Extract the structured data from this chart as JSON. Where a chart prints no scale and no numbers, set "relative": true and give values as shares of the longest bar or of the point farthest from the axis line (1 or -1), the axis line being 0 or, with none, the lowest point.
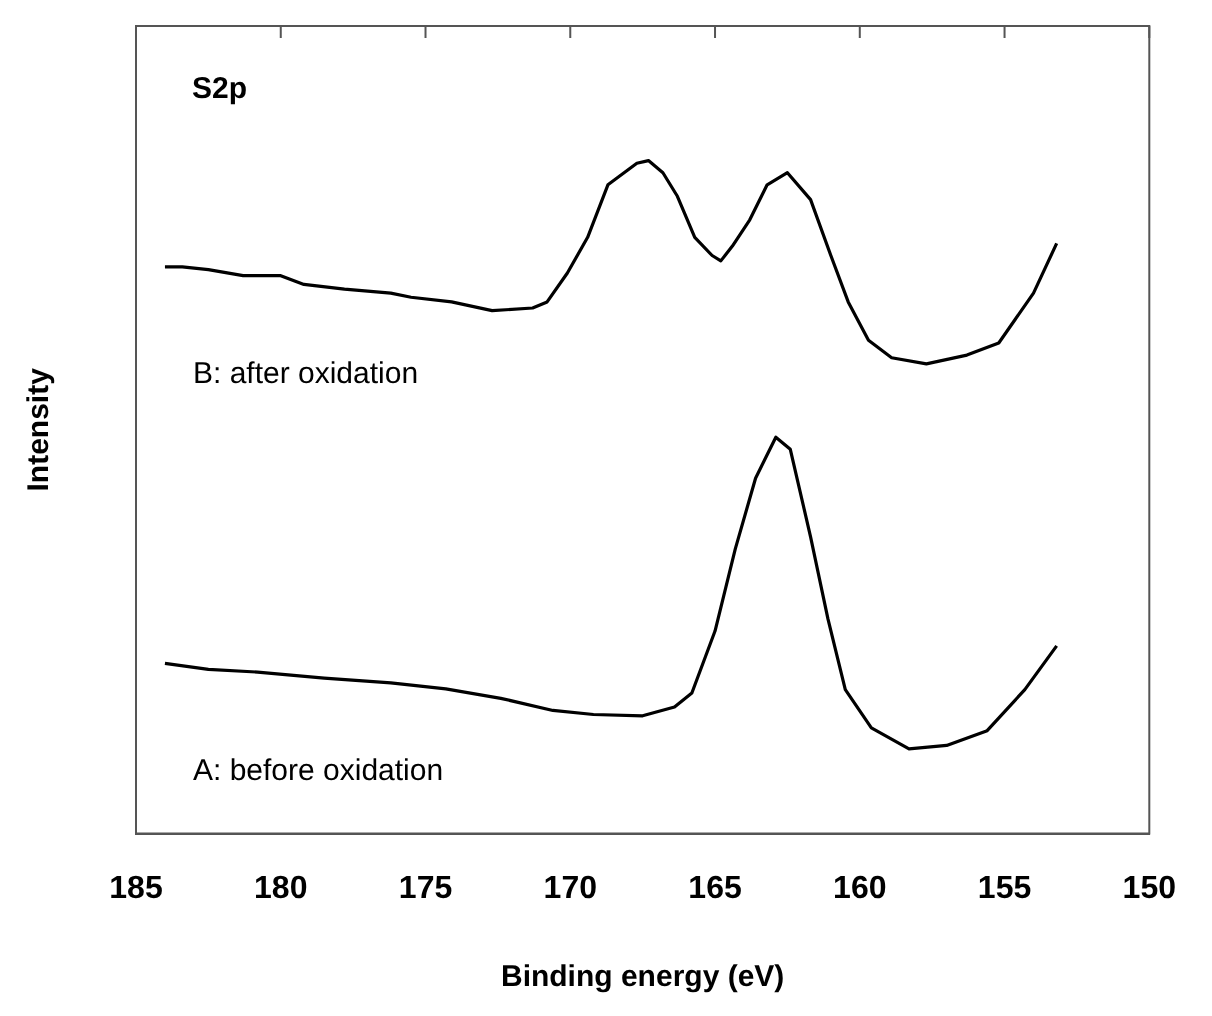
{
  "chart_data": {
    "type": "line",
    "relative": true,
    "xlabel": "Binding energy (eV)",
    "ylabel": "Intensity",
    "annotations": [
      "S2p"
    ],
    "xlim": [
      185,
      150
    ],
    "xticks": [
      185,
      180,
      175,
      170,
      165,
      160,
      155,
      150
    ],
    "grid": false,
    "legend": false,
    "marker": "none",
    "line_style": "solid",
    "series": [
      {
        "name": "B: after oxidation",
        "color": "#000000",
        "x": [
          184.0,
          183.4,
          182.5,
          181.3,
          180.0,
          179.2,
          177.8,
          176.2,
          175.5,
          174.1,
          172.7,
          171.3,
          170.8,
          170.1,
          169.4,
          168.7,
          167.7,
          167.3,
          166.8,
          166.3,
          165.7,
          165.1,
          164.8,
          164.4,
          163.8,
          163.2,
          162.5,
          161.7,
          161.0,
          160.4,
          159.7,
          158.9,
          157.7,
          156.3,
          155.2,
          154.0,
          153.2
        ],
        "values": [
          0.842,
          0.842,
          0.838,
          0.829,
          0.829,
          0.816,
          0.809,
          0.803,
          0.797,
          0.79,
          0.777,
          0.781,
          0.79,
          0.833,
          0.886,
          0.964,
          0.996,
          1.0,
          0.982,
          0.947,
          0.886,
          0.859,
          0.851,
          0.873,
          0.912,
          0.964,
          0.982,
          0.942,
          0.859,
          0.79,
          0.733,
          0.707,
          0.698,
          0.711,
          0.729,
          0.803,
          0.877
        ]
      },
      {
        "name": "A: before oxidation",
        "color": "#000000",
        "x": [
          184.0,
          182.5,
          180.8,
          178.5,
          176.2,
          174.3,
          172.4,
          170.6,
          169.2,
          167.5,
          166.4,
          165.8,
          165.0,
          164.3,
          163.6,
          162.9,
          162.4,
          161.7,
          161.1,
          160.5,
          159.6,
          158.3,
          157.0,
          155.6,
          154.3,
          153.2
        ],
        "values": [
          0.253,
          0.244,
          0.24,
          0.231,
          0.224,
          0.215,
          0.201,
          0.183,
          0.177,
          0.175,
          0.188,
          0.209,
          0.301,
          0.423,
          0.528,
          0.589,
          0.571,
          0.441,
          0.319,
          0.214,
          0.157,
          0.126,
          0.131,
          0.153,
          0.214,
          0.279
        ]
      }
    ]
  }
}
